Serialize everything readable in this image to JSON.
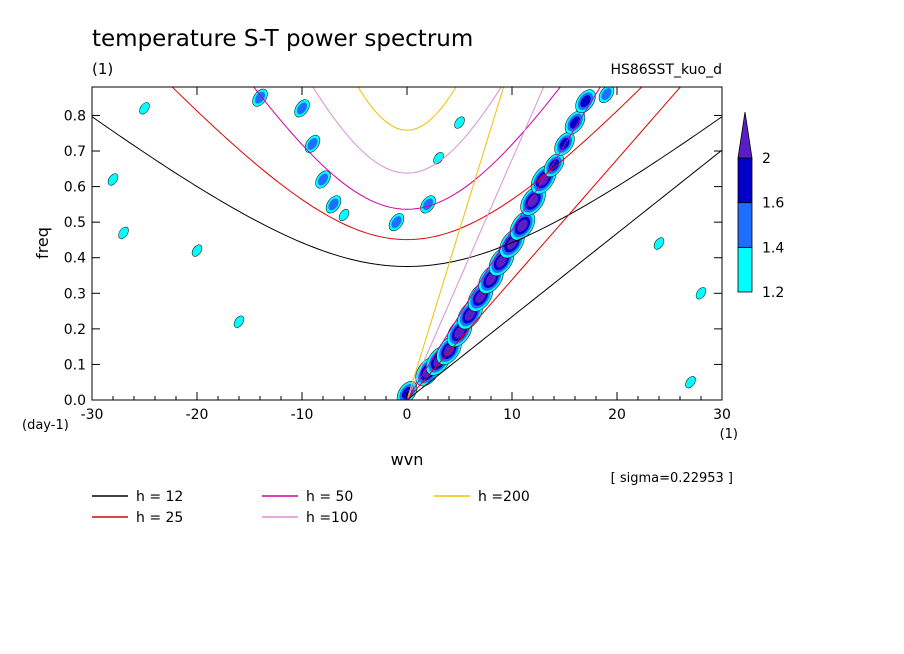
{
  "chart_data": {
    "type": "contour",
    "title": "temperature S-T power spectrum",
    "subtitle_left": "(1)",
    "subtitle_right": "HS86SST_kuo_d",
    "xlabel": "wvn",
    "ylabel": "freq",
    "x_unit": "(1)",
    "y_unit": "(day-1)",
    "xlim": [
      -30,
      30
    ],
    "ylim": [
      0,
      0.88
    ],
    "x_ticks": [
      -30,
      -20,
      -10,
      0,
      10,
      20,
      30
    ],
    "y_ticks": [
      0.0,
      0.1,
      0.2,
      0.3,
      0.4,
      0.5,
      0.6,
      0.7,
      0.8
    ],
    "x_tick_labels": [
      "-30",
      "-20",
      "-10",
      "0",
      "10",
      "20",
      "30"
    ],
    "y_tick_labels": [
      "0.0",
      "0.1",
      "0.2",
      "0.3",
      "0.4",
      "0.5",
      "0.6",
      "0.7",
      "0.8"
    ],
    "sigma_note": "[ sigma=0.22953 ]",
    "colorbar": {
      "levels": [
        "1.2",
        "1.4",
        "1.6",
        "2"
      ],
      "colors": [
        "#00ffff",
        "#1e6fff",
        "#0000c8",
        "#5a1ec8"
      ]
    },
    "dispersion_curves": [
      {
        "h": 12,
        "label": "h = 12",
        "color": "#000000"
      },
      {
        "h": 25,
        "label": "h = 25",
        "color": "#e00000"
      },
      {
        "h": 50,
        "label": "h = 50",
        "color": "#d000a0"
      },
      {
        "h": 100,
        "label": "h =100",
        "color": "#d890d8"
      },
      {
        "h": 200,
        "label": "h =200",
        "color": "#f0c000"
      }
    ],
    "signal_blobs": [
      {
        "x": 2,
        "y": 0.08,
        "level": 3
      },
      {
        "x": 3,
        "y": 0.11,
        "level": 3
      },
      {
        "x": 4,
        "y": 0.14,
        "level": 3
      },
      {
        "x": 5,
        "y": 0.19,
        "level": 3
      },
      {
        "x": 6,
        "y": 0.24,
        "level": 3
      },
      {
        "x": 7,
        "y": 0.29,
        "level": 3
      },
      {
        "x": 8,
        "y": 0.34,
        "level": 3
      },
      {
        "x": 9,
        "y": 0.39,
        "level": 3
      },
      {
        "x": 10,
        "y": 0.44,
        "level": 3
      },
      {
        "x": 11,
        "y": 0.49,
        "level": 3
      },
      {
        "x": 12,
        "y": 0.56,
        "level": 3
      },
      {
        "x": 13,
        "y": 0.62,
        "level": 3
      },
      {
        "x": 14,
        "y": 0.66,
        "level": 2
      },
      {
        "x": 15,
        "y": 0.72,
        "level": 2
      },
      {
        "x": 16,
        "y": 0.78,
        "level": 2
      },
      {
        "x": 17,
        "y": 0.84,
        "level": 2
      },
      {
        "x": 19,
        "y": 0.86,
        "level": 1
      },
      {
        "x": 0,
        "y": 0.02,
        "level": 2
      },
      {
        "x": -14,
        "y": 0.85,
        "level": 1
      },
      {
        "x": -10,
        "y": 0.82,
        "level": 1
      },
      {
        "x": -9,
        "y": 0.72,
        "level": 1
      },
      {
        "x": -8,
        "y": 0.62,
        "level": 1
      },
      {
        "x": -7,
        "y": 0.55,
        "level": 1
      },
      {
        "x": -6,
        "y": 0.52,
        "level": 0
      },
      {
        "x": -1,
        "y": 0.5,
        "level": 1
      },
      {
        "x": 2,
        "y": 0.55,
        "level": 1
      },
      {
        "x": 3,
        "y": 0.68,
        "level": 0
      },
      {
        "x": 5,
        "y": 0.78,
        "level": 0
      },
      {
        "x": -28,
        "y": 0.62,
        "level": 0
      },
      {
        "x": -27,
        "y": 0.47,
        "level": 0
      },
      {
        "x": -16,
        "y": 0.22,
        "level": 0
      },
      {
        "x": 28,
        "y": 0.3,
        "level": 0
      },
      {
        "x": 27,
        "y": 0.05,
        "level": 0
      },
      {
        "x": -25,
        "y": 0.82,
        "level": 0
      },
      {
        "x": -20,
        "y": 0.42,
        "level": 0
      },
      {
        "x": 24,
        "y": 0.44,
        "level": 0
      }
    ]
  }
}
